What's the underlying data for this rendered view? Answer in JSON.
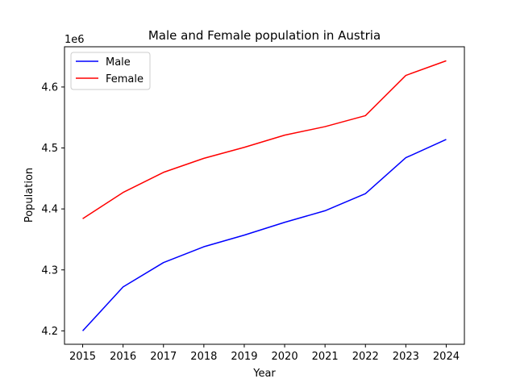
{
  "chart_data": {
    "type": "line",
    "title": "Male and Female population in Austria",
    "xlabel": "Year",
    "ylabel": "Population",
    "y_offset_label": "1e6",
    "y_scale_factor": 1000000,
    "x": [
      2015,
      2016,
      2017,
      2018,
      2019,
      2020,
      2021,
      2022,
      2023,
      2024
    ],
    "x_ticks": [
      "2015",
      "2016",
      "2017",
      "2018",
      "2019",
      "2020",
      "2021",
      "2022",
      "2023",
      "2024"
    ],
    "y_ticks": [
      "4.2",
      "4.3",
      "4.4",
      "4.5",
      "4.6"
    ],
    "y_tick_values": [
      4200000,
      4300000,
      4400000,
      4500000,
      4600000
    ],
    "xlim": [
      2014.55,
      2024.45
    ],
    "ylim": [
      4178000,
      4666000
    ],
    "grid": false,
    "legend_position": "upper-left",
    "series": [
      {
        "name": "Male",
        "color": "#0000ff",
        "values": [
          4200000,
          4272000,
          4312000,
          4338000,
          4357000,
          4378000,
          4397000,
          4425000,
          4484000,
          4514000
        ]
      },
      {
        "name": "Female",
        "color": "#ff0000",
        "values": [
          4384000,
          4427000,
          4460000,
          4483000,
          4501000,
          4521000,
          4535000,
          4553000,
          4619000,
          4643000
        ]
      }
    ]
  }
}
